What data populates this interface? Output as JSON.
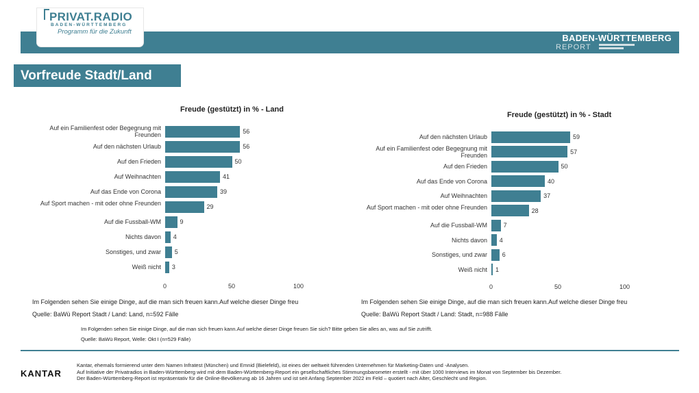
{
  "header": {
    "logo_main": "PRIVAT.RADIO",
    "logo_sub": "BADEN-WÜRTTEMBERG",
    "logo_tagline": "Programm für die Zukunft",
    "report_title": "BADEN-WÜRTTEMBERG",
    "report_sub": "REPORT"
  },
  "page_title": "Vorfreude Stadt/Land",
  "colors": {
    "accent": "#3f7f92"
  },
  "chart_data": [
    {
      "type": "bar",
      "orientation": "horizontal",
      "title": "Freude (gestützt) in % - Land",
      "categories": [
        "Auf ein Familienfest oder Begegnung mit Freunden",
        "Auf den nächsten Urlaub",
        "Auf den Frieden",
        "Auf Weihnachten",
        "Auf das Ende von Corona",
        "Auf Sport machen - mit oder ohne Freunden",
        "Auf die Fussball-WM",
        "Nichts davon",
        "Sonstiges, und zwar",
        "Weiß nicht"
      ],
      "values": [
        56,
        56,
        50,
        41,
        39,
        29,
        9,
        4,
        5,
        3
      ],
      "xlim": [
        0,
        100
      ],
      "xticks": [
        "0",
        "50",
        "100"
      ]
    },
    {
      "type": "bar",
      "orientation": "horizontal",
      "title": "Freude (gestützt) in % - Stadt",
      "categories": [
        "Auf den nächsten Urlaub",
        "Auf ein Familienfest oder Begegnung mit Freunden",
        "Auf den Frieden",
        "Auf das Ende von Corona",
        "Auf Weihnachten",
        "Auf Sport machen - mit oder ohne Freunden",
        "Auf die Fussball-WM",
        "Nichts davon",
        "Sonstiges, und zwar",
        "Weiß nicht"
      ],
      "values": [
        59,
        57,
        50,
        40,
        37,
        28,
        7,
        4,
        6,
        1
      ],
      "xlim": [
        0,
        100
      ],
      "xticks": [
        "0",
        "50",
        "100"
      ]
    }
  ],
  "question_left": "Im Folgenden sehen Sie einige Dinge, auf die man sich freuen kann.Auf welche dieser Dinge freu",
  "question_right": "Im Folgenden sehen Sie einige Dinge, auf die man sich freuen kann.Auf welche dieser Dinge freu",
  "source_left": "Quelle: BaWü Report Stadt / Land: Land, n=592 Fälle",
  "source_right": "Quelle: BaWü Report Stadt / Land: Stadt, n=988 Fälle",
  "question_full": "Im Folgenden sehen Sie einige Dinge, auf die man sich freuen kann.Auf welche dieser Dinge freuen Sie sich? Bitte geben Sie alles an, was auf Sie zutrifft.",
  "source_full": "Quelle: BaWü Report, Welle: Okt I (n=529 Fälle)",
  "footer": {
    "brand": "KANTAR",
    "line1": "Kantar, ehemals formierend unter dem Namen Infratest (München) und Emnid (Bielefeld), ist eines der weltweit führenden Unternehmen für Marketing-Daten und -Analysen.",
    "line2": "Auf Initiative der Privatradios in Baden-Württemberg wird mit dem Baden-Württemberg-Report ein gesellschaftliches Stimmungsbarometer erstellt - mit über 1000 Interviews im Monat von September bis Dezember.",
    "line3": "Der Baden-Württemberg-Report ist repräsentativ für die Online-Bevölkerung ab 16 Jahren und ist seit Anfang September 2022 im Feld – quotiert nach Alter, Geschlecht und Region."
  }
}
